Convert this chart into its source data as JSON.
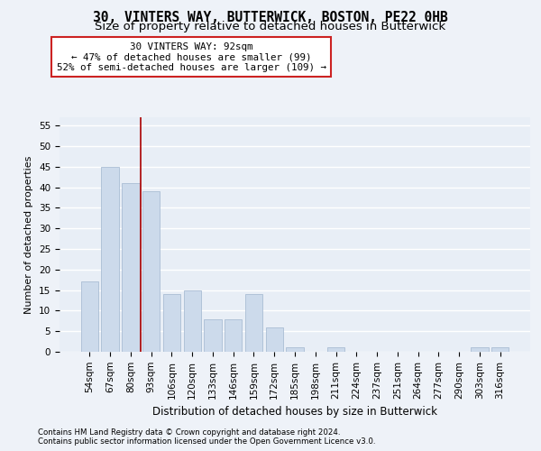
{
  "title1": "30, VINTERS WAY, BUTTERWICK, BOSTON, PE22 0HB",
  "title2": "Size of property relative to detached houses in Butterwick",
  "xlabel": "Distribution of detached houses by size in Butterwick",
  "ylabel": "Number of detached properties",
  "categories": [
    "54sqm",
    "67sqm",
    "80sqm",
    "93sqm",
    "106sqm",
    "120sqm",
    "133sqm",
    "146sqm",
    "159sqm",
    "172sqm",
    "185sqm",
    "198sqm",
    "211sqm",
    "224sqm",
    "237sqm",
    "251sqm",
    "264sqm",
    "277sqm",
    "290sqm",
    "303sqm",
    "316sqm"
  ],
  "values": [
    17,
    45,
    41,
    39,
    14,
    15,
    8,
    8,
    14,
    6,
    1,
    0,
    1,
    0,
    0,
    0,
    0,
    0,
    0,
    1,
    1
  ],
  "bar_color": "#ccdaeb",
  "bar_edge_color": "#aabdd4",
  "vline_x_idx": 2.5,
  "vline_color": "#aa0000",
  "annotation_text": "30 VINTERS WAY: 92sqm\n← 47% of detached houses are smaller (99)\n52% of semi-detached houses are larger (109) →",
  "annotation_box_facecolor": "#ffffff",
  "annotation_box_edgecolor": "#cc2222",
  "ylim": [
    0,
    57
  ],
  "yticks": [
    0,
    5,
    10,
    15,
    20,
    25,
    30,
    35,
    40,
    45,
    50,
    55
  ],
  "footer_line1": "Contains HM Land Registry data © Crown copyright and database right 2024.",
  "footer_line2": "Contains public sector information licensed under the Open Government Licence v3.0.",
  "bg_color": "#eef2f8",
  "plot_bg_color": "#e8eef6",
  "grid_color": "#ffffff",
  "title1_fontsize": 10.5,
  "title2_fontsize": 9.5,
  "xlabel_fontsize": 8.5,
  "ylabel_fontsize": 8,
  "tick_fontsize": 7.5,
  "footer_fontsize": 6.2,
  "ann_fontsize": 7.8
}
